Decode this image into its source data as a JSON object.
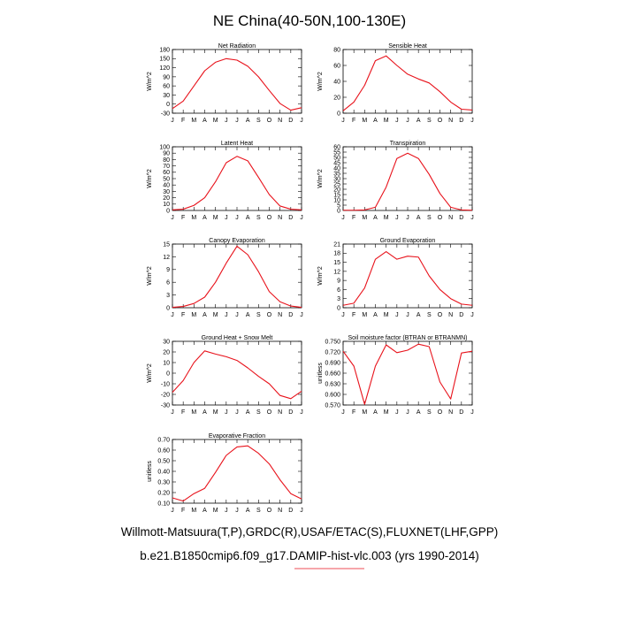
{
  "figure": {
    "title": "NE China(40-50N,100-130E)",
    "footer_line1": "Willmott-Matsuura(T,P),GRDC(R),USAF/ETAC(S),FLUXNET(LHF,GPP)",
    "footer_line2": "b.e21.B1850cmip6.f09_g17.DAMIP-hist-vlc.003 (yrs 1990-2014)",
    "line_color": "#e8121b",
    "underline_color": "#e8121b"
  },
  "chart_data": [
    {
      "type": "line",
      "title": "Net Radiation",
      "ylabel": "W/m^2",
      "x": [
        "J",
        "F",
        "M",
        "A",
        "M",
        "J",
        "J",
        "A",
        "S",
        "O",
        "N",
        "D",
        "J"
      ],
      "ylim": [
        -30,
        180
      ],
      "yticks": [
        "-30",
        "0",
        "30",
        "60",
        "90",
        "120",
        "150",
        "180"
      ],
      "ytick_values": [
        -30,
        0,
        30,
        60,
        90,
        120,
        150,
        180
      ],
      "series": [
        {
          "values": [
            -15,
            10,
            60,
            110,
            138,
            150,
            145,
            125,
            90,
            45,
            2,
            -20,
            -12
          ]
        }
      ]
    },
    {
      "type": "line",
      "title": "Sensible Heat",
      "ylabel": "W/m^2",
      "x": [
        "J",
        "F",
        "M",
        "A",
        "M",
        "J",
        "J",
        "A",
        "S",
        "O",
        "N",
        "D",
        "J"
      ],
      "ylim": [
        0,
        80
      ],
      "yticks": [
        "0",
        "20",
        "40",
        "60",
        "80"
      ],
      "ytick_values": [
        0,
        20,
        40,
        60,
        80
      ],
      "series": [
        {
          "values": [
            3,
            14,
            35,
            66,
            72,
            60,
            49,
            43,
            38,
            27,
            14,
            5,
            4
          ]
        }
      ]
    },
    {
      "type": "line",
      "title": "Latent Heat",
      "ylabel": "W/m^2",
      "x": [
        "J",
        "F",
        "M",
        "A",
        "M",
        "J",
        "J",
        "A",
        "S",
        "O",
        "N",
        "D",
        "J"
      ],
      "ylim": [
        0,
        100
      ],
      "yticks": [
        "0",
        "10",
        "20",
        "30",
        "40",
        "50",
        "60",
        "70",
        "80",
        "90",
        "100"
      ],
      "ytick_values": [
        0,
        10,
        20,
        30,
        40,
        50,
        60,
        70,
        80,
        90,
        100
      ],
      "series": [
        {
          "values": [
            1,
            2,
            8,
            20,
            45,
            75,
            85,
            78,
            52,
            25,
            7,
            2,
            1
          ]
        }
      ]
    },
    {
      "type": "line",
      "title": "Transpiration",
      "ylabel": "W/m^2",
      "x": [
        "J",
        "F",
        "M",
        "A",
        "M",
        "J",
        "J",
        "A",
        "S",
        "O",
        "N",
        "D",
        "J"
      ],
      "ylim": [
        0,
        60
      ],
      "yticks": [
        "0",
        "5",
        "10",
        "15",
        "20",
        "25",
        "30",
        "35",
        "40",
        "45",
        "50",
        "55",
        "60"
      ],
      "ytick_values": [
        0,
        5,
        10,
        15,
        20,
        25,
        30,
        35,
        40,
        45,
        50,
        55,
        60
      ],
      "series": [
        {
          "values": [
            0.2,
            0.2,
            0.5,
            3,
            22,
            49,
            54,
            49,
            34,
            16,
            3,
            0.5,
            0.2
          ]
        }
      ]
    },
    {
      "type": "line",
      "title": "Canopy Evaporation",
      "ylabel": "W/m^2",
      "x": [
        "J",
        "F",
        "M",
        "A",
        "M",
        "J",
        "J",
        "A",
        "S",
        "O",
        "N",
        "D",
        "J"
      ],
      "ylim": [
        0,
        15
      ],
      "yticks": [
        "0",
        "3",
        "6",
        "9",
        "12",
        "15"
      ],
      "ytick_values": [
        0,
        3,
        6,
        9,
        12,
        15
      ],
      "series": [
        {
          "values": [
            0.1,
            0.3,
            1.0,
            2.5,
            6.0,
            10.5,
            14.5,
            12.5,
            8.5,
            3.8,
            1.4,
            0.4,
            0.1
          ]
        }
      ]
    },
    {
      "type": "line",
      "title": "Ground Evaporation",
      "ylabel": "W/m^2",
      "x": [
        "J",
        "F",
        "M",
        "A",
        "M",
        "J",
        "J",
        "A",
        "S",
        "O",
        "N",
        "D",
        "J"
      ],
      "ylim": [
        0,
        21
      ],
      "yticks": [
        "0",
        "3",
        "6",
        "9",
        "12",
        "15",
        "18",
        "21"
      ],
      "ytick_values": [
        0,
        3,
        6,
        9,
        12,
        15,
        18,
        21
      ],
      "series": [
        {
          "values": [
            0.8,
            1.5,
            6.5,
            16,
            18.5,
            16,
            17,
            16.7,
            10.5,
            6,
            3,
            1.2,
            0.8
          ]
        }
      ]
    },
    {
      "type": "line",
      "title": "Ground Heat + Snow Melt",
      "ylabel": "W/m^2",
      "x": [
        "J",
        "F",
        "M",
        "A",
        "M",
        "J",
        "J",
        "A",
        "S",
        "O",
        "N",
        "D",
        "J"
      ],
      "ylim": [
        -30,
        30
      ],
      "yticks": [
        "-30",
        "-20",
        "-10",
        "0",
        "10",
        "20",
        "30"
      ],
      "ytick_values": [
        -30,
        -20,
        -10,
        0,
        10,
        20,
        30
      ],
      "series": [
        {
          "values": [
            -18,
            -7,
            10,
            21,
            18,
            15.5,
            12,
            5,
            -3,
            -10,
            -21,
            -24,
            -17
          ]
        }
      ]
    },
    {
      "type": "line",
      "title": "Soil moisture factor (BTRAN or BTRANMN)",
      "ylabel": "unitless",
      "x": [
        "J",
        "F",
        "M",
        "A",
        "M",
        "J",
        "J",
        "A",
        "S",
        "O",
        "N",
        "D",
        "J"
      ],
      "ylim": [
        0.57,
        0.75
      ],
      "yticks": [
        "0.570",
        "0.600",
        "0.630",
        "0.660",
        "0.690",
        "0.720",
        "0.750"
      ],
      "ytick_values": [
        0.57,
        0.6,
        0.63,
        0.66,
        0.69,
        0.72,
        0.75
      ],
      "series": [
        {
          "values": [
            0.722,
            0.68,
            0.572,
            0.68,
            0.74,
            0.718,
            0.725,
            0.742,
            0.735,
            0.635,
            0.587,
            0.717,
            0.722
          ]
        }
      ]
    },
    {
      "type": "line",
      "title": "Evaporative Fraction",
      "ylabel": "unitless",
      "x": [
        "J",
        "F",
        "M",
        "A",
        "M",
        "J",
        "J",
        "A",
        "S",
        "O",
        "N",
        "D",
        "J"
      ],
      "ylim": [
        0.1,
        0.7
      ],
      "yticks": [
        "0.10",
        "0.20",
        "0.30",
        "0.40",
        "0.50",
        "0.60",
        "0.70"
      ],
      "ytick_values": [
        0.1,
        0.2,
        0.3,
        0.4,
        0.5,
        0.6,
        0.7
      ],
      "series": [
        {
          "values": [
            0.15,
            0.12,
            0.19,
            0.24,
            0.39,
            0.55,
            0.63,
            0.64,
            0.57,
            0.47,
            0.32,
            0.19,
            0.14
          ]
        }
      ]
    }
  ]
}
